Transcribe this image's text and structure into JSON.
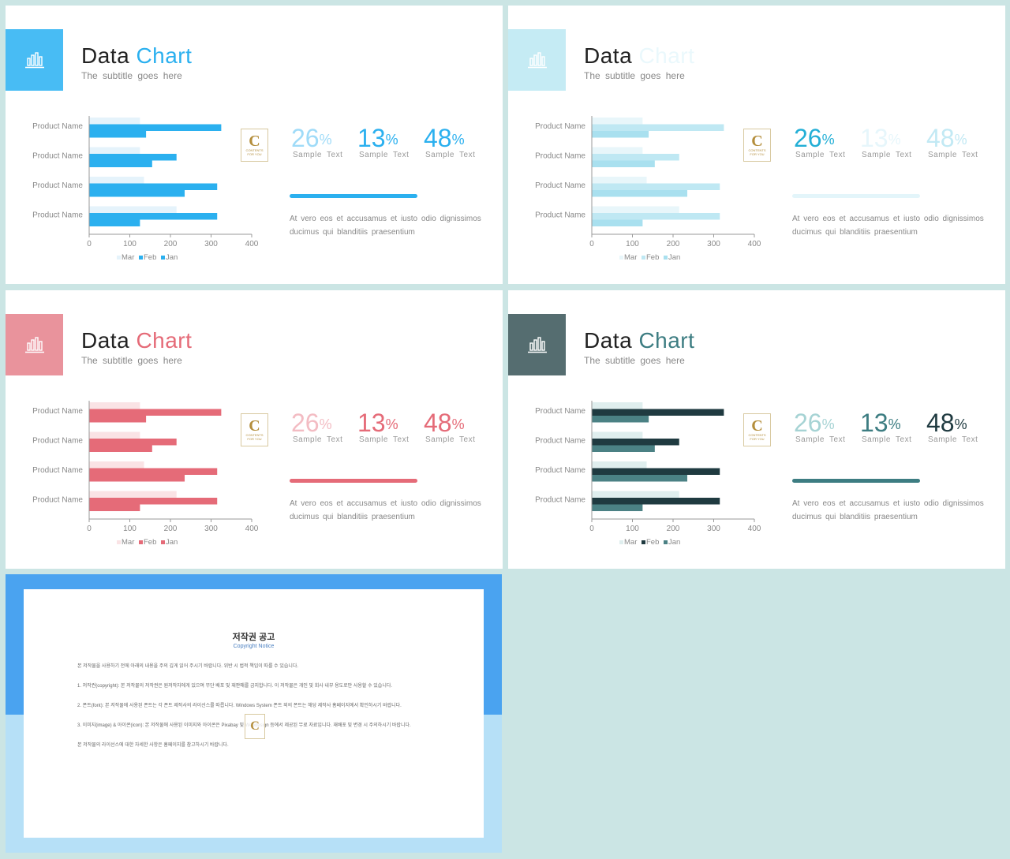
{
  "slides": [
    {
      "title_word1": "Data",
      "title_word2": "Chart",
      "subtitle": "The subtitle  goes  here",
      "accent": "#48bcf4",
      "bar_colors": [
        "#e5f3fb",
        "#2bb0ef",
        "#2bb0ef"
      ],
      "title2_color": "#2bb0ef",
      "stat_colors": [
        "#9fdbf8",
        "#2bb0ef",
        "#2bb0ef"
      ],
      "line_color": "#2bb0ef"
    },
    {
      "title_word1": "Data",
      "title_word2": "Chart",
      "subtitle": "The subtitle  goes  here",
      "accent": "#c5ebf4",
      "bar_colors": [
        "#e8f6fa",
        "#bfe8f3",
        "#a9e0ef"
      ],
      "title2_color": "#eaf8fc",
      "stat_colors": [
        "#23afd6",
        "#e6f6fb",
        "#c2e9f4"
      ],
      "line_color": "#e3f5fa"
    },
    {
      "title_word1": "Data",
      "title_word2": "Chart",
      "subtitle": "The subtitle  goes  here",
      "accent": "#e9939c",
      "bar_colors": [
        "#fae3e5",
        "#e56b78",
        "#e56b78"
      ],
      "title2_color": "#e56b78",
      "stat_colors": [
        "#f3bcc3",
        "#e56b78",
        "#e56b78"
      ],
      "line_color": "#e56b78"
    },
    {
      "title_word1": "Data",
      "title_word2": "Chart",
      "subtitle": "The subtitle  goes  here",
      "accent": "#556d70",
      "bar_colors": [
        "#dfeeee",
        "#1f3a40",
        "#4b8184"
      ],
      "title2_color": "#3d7d82",
      "stat_colors": [
        "#a6d3d4",
        "#3d7d82",
        "#1f3a40"
      ],
      "line_color": "#3d7d82"
    }
  ],
  "chart_data": {
    "type": "bar",
    "orientation": "horizontal",
    "categories": [
      "Product Name",
      "Product Name",
      "Product Name",
      "Product Name"
    ],
    "series": [
      {
        "name": "Mar",
        "values": [
          125,
          125,
          135,
          215
        ]
      },
      {
        "name": "Feb",
        "values": [
          325,
          215,
          315,
          315
        ]
      },
      {
        "name": "Jan",
        "values": [
          140,
          155,
          235,
          125
        ]
      }
    ],
    "x_ticks": [
      "0",
      "100",
      "200",
      "300",
      "400"
    ],
    "xlim": [
      0,
      400
    ],
    "legend": [
      "Mar",
      "Feb",
      "Jan"
    ],
    "legend_position": "bottom"
  },
  "logo": {
    "letter": "C",
    "line1": "CONTENTS",
    "line2": "FOR YOU"
  },
  "stats": [
    {
      "value": "26",
      "unit": "%",
      "label": "Sample  Text"
    },
    {
      "value": "13",
      "unit": "%",
      "label": "Sample  Text"
    },
    {
      "value": "48",
      "unit": "%",
      "label": "Sample  Text"
    }
  ],
  "paragraph": "At vero eos et accusamus et iusto odio dignissimos ducimus  qui blanditiis  praesentium",
  "copyright": {
    "title": "저작권 공고",
    "subtitle": "Copyright Notice",
    "p0": "본 저작물을 사용하기 전에 아래의 내용을 주의 깊게 읽어 주시기 바랍니다. 위반 시 법적 책임이 따를 수 있습니다.",
    "p1": "1. 저작권(copyright): 본 저작물의 저작권은 원저작자에게 있으며 무단 배포 및 재판매를 금지합니다. 이 저작물은 개인 및 회사 내부 용도로만 사용할 수 있습니다.",
    "p2": "2. 폰트(font): 본 저작물에 사용된 폰트는 각 폰트 제작사의 라이선스를 따릅니다. Windows System 폰트 외의 폰트는 해당 제작사 홈페이지에서 확인하시기 바랍니다.",
    "p3": "3. 이미지(image) & 아이콘(icon): 본 저작물에 사용된 이미지와 아이콘은 Pixabay 및 Webdesign 등에서 제공된 무료 자료입니다. 재배포 및 변경 시 주의하시기 바랍니다.",
    "p4": "본 저작물의 라이선스에 대한 자세한 사항은 홈페이지를 참고하시기 바랍니다."
  }
}
